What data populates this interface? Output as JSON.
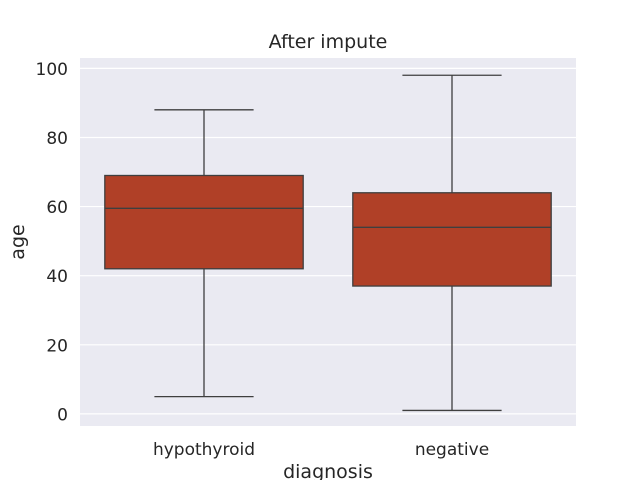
{
  "chart_data": {
    "type": "box",
    "title": "After impute",
    "xlabel": "diagnosis",
    "ylabel": "age",
    "categories": [
      "hypothyroid",
      "negative"
    ],
    "boxes": [
      {
        "category": "hypothyroid",
        "whisker_low": 5,
        "q1": 42,
        "median": 59.5,
        "q3": 69,
        "whisker_high": 88
      },
      {
        "category": "negative",
        "whisker_low": 1,
        "q1": 37,
        "median": 54,
        "q3": 64,
        "whisker_high": 98
      }
    ],
    "ylim": [
      -3.5,
      103
    ],
    "yticks": [
      0,
      20,
      40,
      60,
      80,
      100
    ],
    "grid": true,
    "colors": {
      "box_fill": "#b04027",
      "line": "#3f3f3f",
      "plot_background": "#eaeaf2",
      "grid": "#ffffff",
      "text": "#262626"
    }
  }
}
